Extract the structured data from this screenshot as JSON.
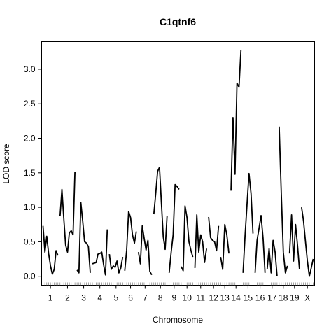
{
  "chart_data": {
    "type": "line",
    "title": "C1qtnf6",
    "xlabel": "Chromosome",
    "ylabel": "LOD score",
    "ylim": [
      -0.13,
      3.4
    ],
    "yticks": [
      0.0,
      0.5,
      1.0,
      1.5,
      2.0,
      2.5,
      3.0
    ],
    "ytick_labels": [
      "0.0",
      "0.5",
      "1.0",
      "1.5",
      "2.0",
      "2.5",
      "3.0"
    ],
    "grid": false,
    "legend": "none",
    "chromosomes": [
      {
        "label": "1",
        "values": [
          0.73,
          0.35,
          0.58,
          0.33,
          0.15,
          0.03,
          0.1,
          0.37,
          0.3
        ]
      },
      {
        "label": "2",
        "values": [
          0.87,
          1.26,
          0.85,
          0.45,
          0.35,
          0.63,
          0.66,
          0.6,
          1.51
        ]
      },
      {
        "label": "3",
        "values": [
          0.09,
          0.05,
          1.07,
          0.8,
          0.5,
          0.48,
          0.43,
          0.05
        ]
      },
      {
        "label": "4",
        "values": [
          0.18,
          0.19,
          0.2,
          0.32,
          0.33,
          0.35,
          0.17,
          0.02,
          0.68
        ]
      },
      {
        "label": "5",
        "values": [
          0.32,
          0.1,
          0.15,
          0.13,
          0.22,
          0.05,
          0.12,
          0.28
        ]
      },
      {
        "label": "6",
        "values": [
          0.08,
          0.38,
          0.94,
          0.85,
          0.6,
          0.48,
          0.65
        ]
      },
      {
        "label": "7",
        "values": [
          0.35,
          0.18,
          0.73,
          0.55,
          0.38,
          0.52,
          0.07,
          0.02
        ]
      },
      {
        "label": "8",
        "values": [
          0.9,
          1.2,
          1.52,
          1.58,
          1.07,
          0.57,
          0.39,
          0.87
        ]
      },
      {
        "label": "9",
        "values": [
          0.05,
          0.35,
          0.6,
          1.33,
          1.3,
          1.26
        ]
      },
      {
        "label": "10",
        "values": [
          0.14,
          0.08,
          1.02,
          0.85,
          0.5,
          0.38,
          0.28
        ]
      },
      {
        "label": "11",
        "values": [
          0.12,
          0.89,
          0.35,
          0.6,
          0.5,
          0.2,
          0.4
        ]
      },
      {
        "label": "12",
        "values": [
          0.86,
          0.56,
          0.52,
          0.5,
          0.37,
          0.73
        ]
      },
      {
        "label": "13",
        "values": [
          0.28,
          0.1,
          0.75,
          0.6,
          0.33
        ]
      },
      {
        "label": "14",
        "values": [
          1.24,
          2.3,
          1.48,
          2.8,
          2.74,
          3.28
        ]
      },
      {
        "label": "15",
        "values": [
          0.05,
          0.58,
          1.05,
          1.49,
          1.2,
          0.62
        ]
      },
      {
        "label": "16",
        "values": [
          0.05,
          0.52,
          0.7,
          0.88,
          0.55,
          0.05
        ]
      },
      {
        "label": "17",
        "values": [
          0.1,
          0.4,
          0.05,
          0.52,
          0.35,
          0.0
        ]
      },
      {
        "label": "18",
        "values": [
          2.17,
          1.2,
          0.35,
          0.05,
          0.15
        ]
      },
      {
        "label": "19",
        "values": [
          0.33,
          0.89,
          0.22,
          0.75,
          0.45,
          0.1
        ]
      },
      {
        "label": "X",
        "values": [
          1.0,
          0.8,
          0.5,
          0.22,
          0.0,
          0.12,
          0.25
        ]
      }
    ]
  }
}
